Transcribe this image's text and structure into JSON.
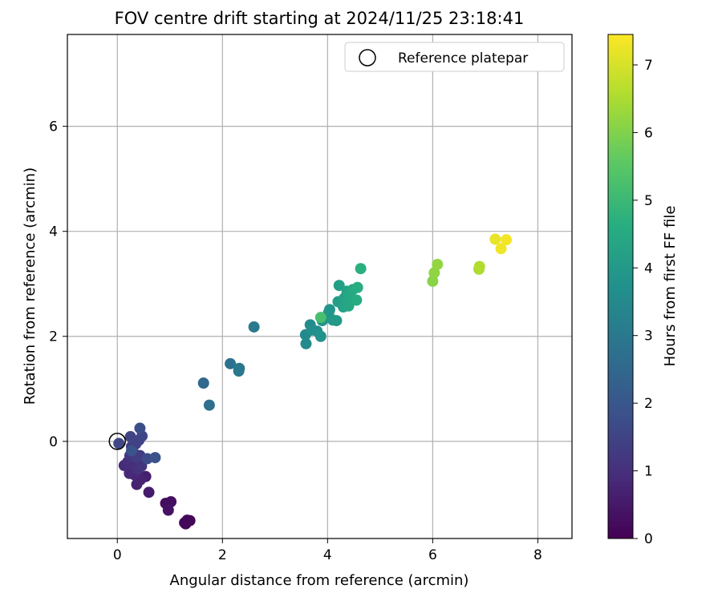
{
  "chart_data": {
    "type": "scatter",
    "title": "FOV centre drift starting at 2024/11/25 23:18:41",
    "xlabel": "Angular distance from reference (arcmin)",
    "ylabel": "Rotation from reference (arcmin)",
    "colorbar_label": "Hours from first FF file",
    "xlim": [
      -0.95,
      8.65
    ],
    "ylim": [
      -1.85,
      7.75
    ],
    "x_ticks": [
      0,
      2,
      4,
      6,
      8
    ],
    "y_ticks": [
      0,
      2,
      4,
      6
    ],
    "colorbar_range": [
      0,
      7.45
    ],
    "colorbar_ticks": [
      0,
      1,
      2,
      3,
      4,
      5,
      6,
      7
    ],
    "colormap": "viridis",
    "grid": true,
    "legend_position": "top-right",
    "legend": [
      {
        "label": "Reference platepar",
        "marker": "open-circle",
        "color": "#000000"
      }
    ],
    "reference_point": {
      "x": 0,
      "y": 0
    },
    "points": [
      {
        "x": 1.3,
        "y": -1.57,
        "c": 0.05
      },
      {
        "x": 1.38,
        "y": -1.51,
        "c": 0.1
      },
      {
        "x": 1.33,
        "y": -1.5,
        "c": 0.15
      },
      {
        "x": 1.28,
        "y": -1.55,
        "c": 0.12
      },
      {
        "x": 0.92,
        "y": -1.18,
        "c": 0.25
      },
      {
        "x": 1.02,
        "y": -1.15,
        "c": 0.3
      },
      {
        "x": 0.97,
        "y": -1.31,
        "c": 0.35
      },
      {
        "x": 0.6,
        "y": -0.97,
        "c": 0.55
      },
      {
        "x": 0.54,
        "y": -0.67,
        "c": 0.65
      },
      {
        "x": 0.37,
        "y": -0.82,
        "c": 0.7
      },
      {
        "x": 0.44,
        "y": -0.73,
        "c": 0.75
      },
      {
        "x": 0.33,
        "y": -0.64,
        "c": 0.8
      },
      {
        "x": 0.23,
        "y": -0.61,
        "c": 0.85
      },
      {
        "x": 0.13,
        "y": -0.46,
        "c": 0.9
      },
      {
        "x": 0.2,
        "y": -0.39,
        "c": 0.95
      },
      {
        "x": 0.29,
        "y": -0.44,
        "c": 1.0
      },
      {
        "x": 0.39,
        "y": -0.53,
        "c": 1.05
      },
      {
        "x": 0.46,
        "y": -0.47,
        "c": 1.1
      },
      {
        "x": 0.24,
        "y": -0.27,
        "c": 1.15
      },
      {
        "x": 0.31,
        "y": -0.22,
        "c": 1.2
      },
      {
        "x": 0.36,
        "y": -0.3,
        "c": 1.25
      },
      {
        "x": 0.43,
        "y": -0.27,
        "c": 1.3
      },
      {
        "x": 0.27,
        "y": -0.1,
        "c": 1.35
      },
      {
        "x": 0.35,
        "y": -0.05,
        "c": 1.4
      },
      {
        "x": 0.41,
        "y": 0.02,
        "c": 1.45
      },
      {
        "x": 0.25,
        "y": 0.09,
        "c": 1.5
      },
      {
        "x": 0.47,
        "y": 0.1,
        "c": 1.55
      },
      {
        "x": 0.03,
        "y": -0.04,
        "c": 1.6
      },
      {
        "x": 0.57,
        "y": -0.33,
        "c": 1.7
      },
      {
        "x": 0.43,
        "y": 0.25,
        "c": 1.75
      },
      {
        "x": 0.72,
        "y": -0.31,
        "c": 1.85
      },
      {
        "x": 0.27,
        "y": -0.18,
        "c": 1.9
      },
      {
        "x": 1.64,
        "y": 1.11,
        "c": 2.5
      },
      {
        "x": 1.75,
        "y": 0.69,
        "c": 2.7
      },
      {
        "x": 2.15,
        "y": 1.48,
        "c": 2.8
      },
      {
        "x": 2.32,
        "y": 1.39,
        "c": 2.9
      },
      {
        "x": 2.31,
        "y": 1.34,
        "c": 2.95
      },
      {
        "x": 2.6,
        "y": 2.18,
        "c": 3.0
      },
      {
        "x": 3.59,
        "y": 1.86,
        "c": 3.5
      },
      {
        "x": 3.58,
        "y": 2.03,
        "c": 3.55
      },
      {
        "x": 3.67,
        "y": 2.22,
        "c": 3.6
      },
      {
        "x": 3.7,
        "y": 2.12,
        "c": 3.65
      },
      {
        "x": 3.8,
        "y": 2.1,
        "c": 3.7
      },
      {
        "x": 3.87,
        "y": 2.0,
        "c": 3.75
      },
      {
        "x": 3.9,
        "y": 2.3,
        "c": 3.8
      },
      {
        "x": 4.02,
        "y": 2.45,
        "c": 3.85
      },
      {
        "x": 4.04,
        "y": 2.51,
        "c": 3.9
      },
      {
        "x": 4.1,
        "y": 2.31,
        "c": 3.95
      },
      {
        "x": 4.17,
        "y": 2.3,
        "c": 4.0
      },
      {
        "x": 4.2,
        "y": 2.66,
        "c": 4.1
      },
      {
        "x": 4.22,
        "y": 2.97,
        "c": 4.15
      },
      {
        "x": 4.3,
        "y": 2.56,
        "c": 4.2
      },
      {
        "x": 4.32,
        "y": 2.73,
        "c": 4.25
      },
      {
        "x": 4.37,
        "y": 2.86,
        "c": 4.3
      },
      {
        "x": 4.34,
        "y": 2.6,
        "c": 4.35
      },
      {
        "x": 4.4,
        "y": 2.58,
        "c": 4.4
      },
      {
        "x": 4.42,
        "y": 2.75,
        "c": 4.45
      },
      {
        "x": 4.48,
        "y": 2.89,
        "c": 4.5
      },
      {
        "x": 4.55,
        "y": 2.69,
        "c": 4.55
      },
      {
        "x": 4.57,
        "y": 2.93,
        "c": 4.6
      },
      {
        "x": 4.63,
        "y": 3.29,
        "c": 4.7
      },
      {
        "x": 3.87,
        "y": 2.36,
        "c": 5.2
      },
      {
        "x": 6.0,
        "y": 3.05,
        "c": 6.1
      },
      {
        "x": 6.03,
        "y": 3.21,
        "c": 6.15
      },
      {
        "x": 6.09,
        "y": 3.37,
        "c": 6.2
      },
      {
        "x": 6.88,
        "y": 3.28,
        "c": 6.5
      },
      {
        "x": 6.89,
        "y": 3.33,
        "c": 6.55
      },
      {
        "x": 7.19,
        "y": 3.85,
        "c": 7.2
      },
      {
        "x": 7.3,
        "y": 3.67,
        "c": 7.3
      },
      {
        "x": 7.4,
        "y": 3.84,
        "c": 7.35
      }
    ]
  }
}
